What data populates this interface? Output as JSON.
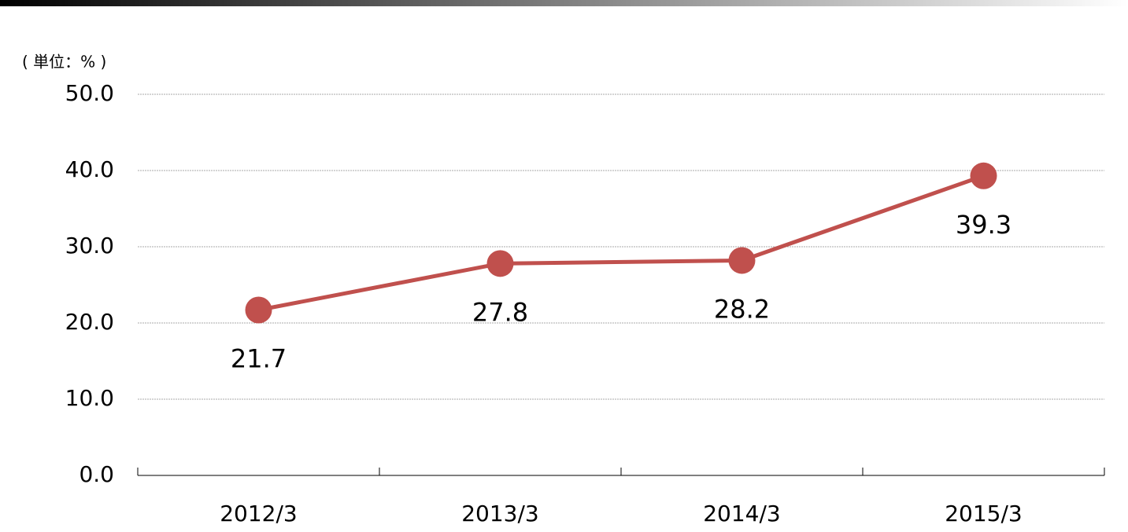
{
  "chart_data": {
    "type": "line",
    "unit_label": "( 単位：% )",
    "categories": [
      "2012/3",
      "2013/3",
      "2014/3",
      "2015/3"
    ],
    "values": [
      21.7,
      27.8,
      28.2,
      39.3
    ],
    "color": "#c0504d",
    "ylim": [
      0,
      50
    ],
    "yticks": [
      {
        "value": 0,
        "label": "0.0"
      },
      {
        "value": 10,
        "label": "10.0"
      },
      {
        "value": 20,
        "label": "20.0"
      },
      {
        "value": 30,
        "label": "30.0"
      },
      {
        "value": 40,
        "label": "40.0"
      },
      {
        "value": 50,
        "label": "50.0"
      }
    ],
    "grid": true
  }
}
